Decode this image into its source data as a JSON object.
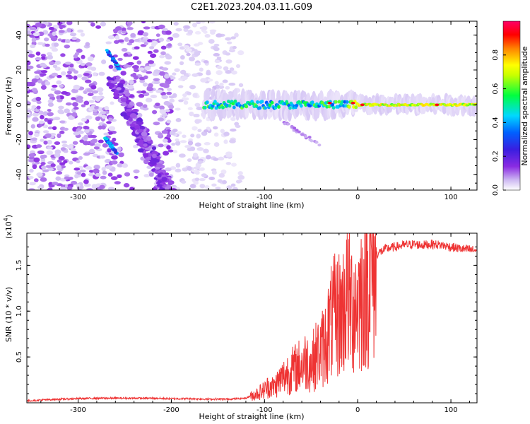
{
  "title": "C2E1.2023.204.03.11.G09",
  "chart_data": [
    {
      "type": "heatmap",
      "xlabel": "Height of straight line (km)",
      "ylabel": "Frequency (Hz)",
      "xlim": [
        -355,
        128
      ],
      "ylim": [
        -49,
        48
      ],
      "xticks": [
        -300,
        -200,
        -100,
        0,
        100
      ],
      "yticks": [
        -40,
        -20,
        0,
        20,
        40
      ],
      "colorbar": {
        "label": "Normalized spectral amplitude",
        "range": [
          0.0,
          1.0
        ],
        "ticks": [
          0.0,
          0.2,
          0.4,
          0.6,
          0.8
        ],
        "colormap": [
          "#ffffff",
          "#d7c8f5",
          "#8a2be2",
          "#4b1ed6",
          "#0050ff",
          "#00d0ff",
          "#00ff40",
          "#ffff00",
          "#ff8000",
          "#ff0000",
          "#ff0060"
        ]
      },
      "features": [
        {
          "name": "scattered-noise",
          "x_range": [
            -355,
            -120
          ],
          "y_range": [
            -49,
            48
          ],
          "amplitude": 0.15
        },
        {
          "name": "diagonal-track-upper",
          "x": [
            -270,
            -255
          ],
          "y": [
            32,
            20
          ],
          "amplitude": 0.5
        },
        {
          "name": "diagonal-track-lower",
          "x": [
            -272,
            -258
          ],
          "y": [
            -18,
            -28
          ],
          "amplitude": 0.5
        },
        {
          "name": "diagonal-band",
          "x": [
            -260,
            -200
          ],
          "y": [
            10,
            -49
          ],
          "amplitude": 0.2
        },
        {
          "name": "carrier-line",
          "x_range": [
            -165,
            128
          ],
          "y": 0,
          "amplitude": 0.7
        },
        {
          "name": "descending-branch",
          "x": [
            -80,
            -35
          ],
          "y": [
            -10,
            -25
          ],
          "amplitude": 0.15
        }
      ]
    },
    {
      "type": "line",
      "xlabel": "Height of straight line (km)",
      "ylabel": "SNR (10 * v/v)",
      "yscale_label": "(x10",
      "yscale_exp": "4",
      "xlim": [
        -355,
        128
      ],
      "ylim": [
        0,
        1.85
      ],
      "xticks": [
        -300,
        -200,
        -100,
        0,
        100
      ],
      "yticks": [
        0.5,
        1.0,
        1.5
      ],
      "color": "#ee3333",
      "series": [
        {
          "x": [
            -355,
            -340,
            -320,
            -300,
            -280,
            -260,
            -240,
            -220,
            -200,
            -180,
            -160,
            -140,
            -120,
            -110,
            -100,
            -95,
            -90,
            -85,
            -80,
            -75,
            -70,
            -65,
            -60,
            -55,
            -50,
            -45,
            -40,
            -35,
            -30,
            -25,
            -20,
            -15,
            -12,
            -10,
            -5,
            0,
            5,
            10,
            15,
            20,
            25,
            30,
            40,
            50,
            60,
            70,
            80,
            90,
            100,
            110,
            120,
            128
          ],
          "y": [
            0.02,
            0.03,
            0.04,
            0.045,
            0.05,
            0.05,
            0.05,
            0.05,
            0.045,
            0.045,
            0.04,
            0.04,
            0.05,
            0.1,
            0.15,
            0.2,
            0.18,
            0.25,
            0.3,
            0.35,
            0.38,
            0.42,
            0.45,
            0.5,
            0.45,
            0.55,
            0.6,
            0.7,
            0.9,
            1.0,
            1.05,
            1.1,
            1.3,
            1.2,
            1.15,
            1.2,
            1.3,
            1.45,
            1.55,
            1.62,
            1.65,
            1.68,
            1.7,
            1.72,
            1.73,
            1.72,
            1.73,
            1.72,
            1.7,
            1.68,
            1.67,
            1.66
          ]
        }
      ]
    }
  ]
}
